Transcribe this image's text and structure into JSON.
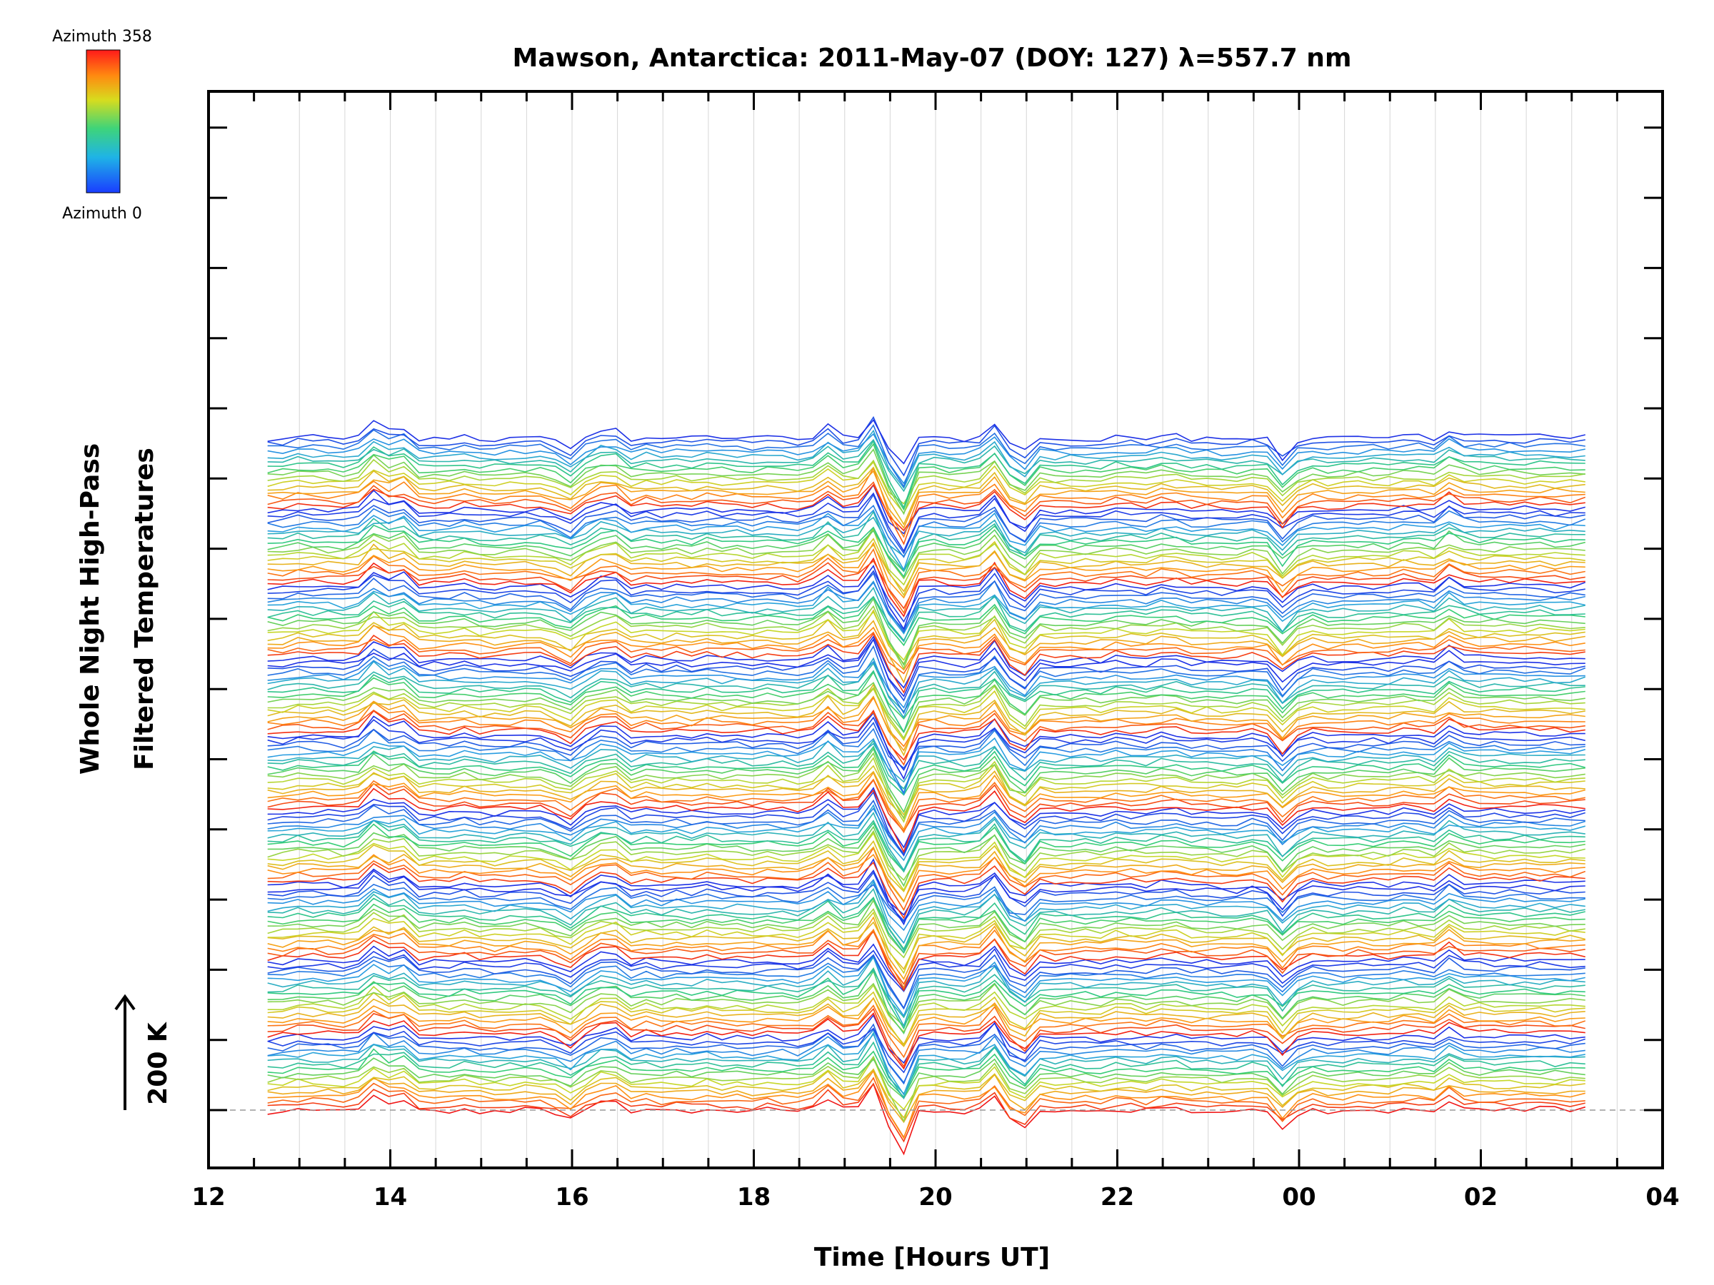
{
  "chart_data": {
    "type": "line",
    "title": "Mawson, Antarctica: 2011-May-07 (DOY: 127) λ=557.7 nm",
    "xlabel": "Time [Hours UT]",
    "ylabel_line1": "Whole Night High-Pass",
    "ylabel_line2": "Filtered Temperatures",
    "scale_label": "200 K",
    "colorbar": {
      "top_label": "Azimuth 358",
      "bottom_label": "Azimuth 0"
    },
    "x_ticks": [
      "12",
      "14",
      "16",
      "18",
      "20",
      "22",
      "00",
      "02",
      "04"
    ],
    "xlim": [
      12,
      28
    ],
    "data_time_range": [
      12.65,
      27.15
    ],
    "series_count": 150,
    "azimuth_range": [
      0,
      358
    ],
    "series_groups": 9,
    "events": [
      {
        "time": 13.85,
        "amplitude": 45
      },
      {
        "time": 14.1,
        "amplitude": 30
      },
      {
        "time": 15.95,
        "amplitude": -25
      },
      {
        "time": 16.4,
        "amplitude": 30
      },
      {
        "time": 18.8,
        "amplitude": 35
      },
      {
        "time": 19.3,
        "amplitude": 55
      },
      {
        "time": 19.6,
        "amplitude": -110
      },
      {
        "time": 20.7,
        "amplitude": 45
      },
      {
        "time": 20.9,
        "amplitude": -70
      },
      {
        "time": 23.85,
        "amplitude": -50
      },
      {
        "time": 25.7,
        "amplitude": 35
      }
    ],
    "grid": true
  }
}
